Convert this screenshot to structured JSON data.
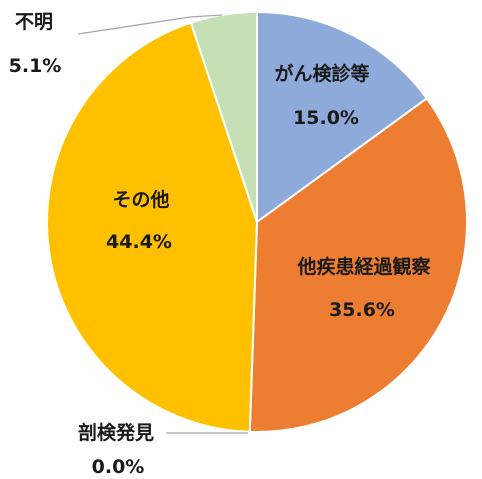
{
  "chart_data": {
    "type": "pie",
    "slices": [
      {
        "label": "がん検診等",
        "value": 15.0,
        "value_label": "15.0%",
        "color": "#8eaadb"
      },
      {
        "label": "他疾患経過観察",
        "value": 35.6,
        "value_label": "35.6%",
        "color": "#ed7d31"
      },
      {
        "label": "剖検発見",
        "value": 0.0,
        "value_label": "0.0%",
        "color": "#a5a5a5"
      },
      {
        "label": "その他",
        "value": 44.4,
        "value_label": "44.4%",
        "color": "#ffc000"
      },
      {
        "label": "不明",
        "value": 5.1,
        "value_label": "5.1%",
        "color": "#c5e0b4"
      }
    ],
    "start_angle": "12 o'clock",
    "direction": "clockwise",
    "legend": "none"
  }
}
